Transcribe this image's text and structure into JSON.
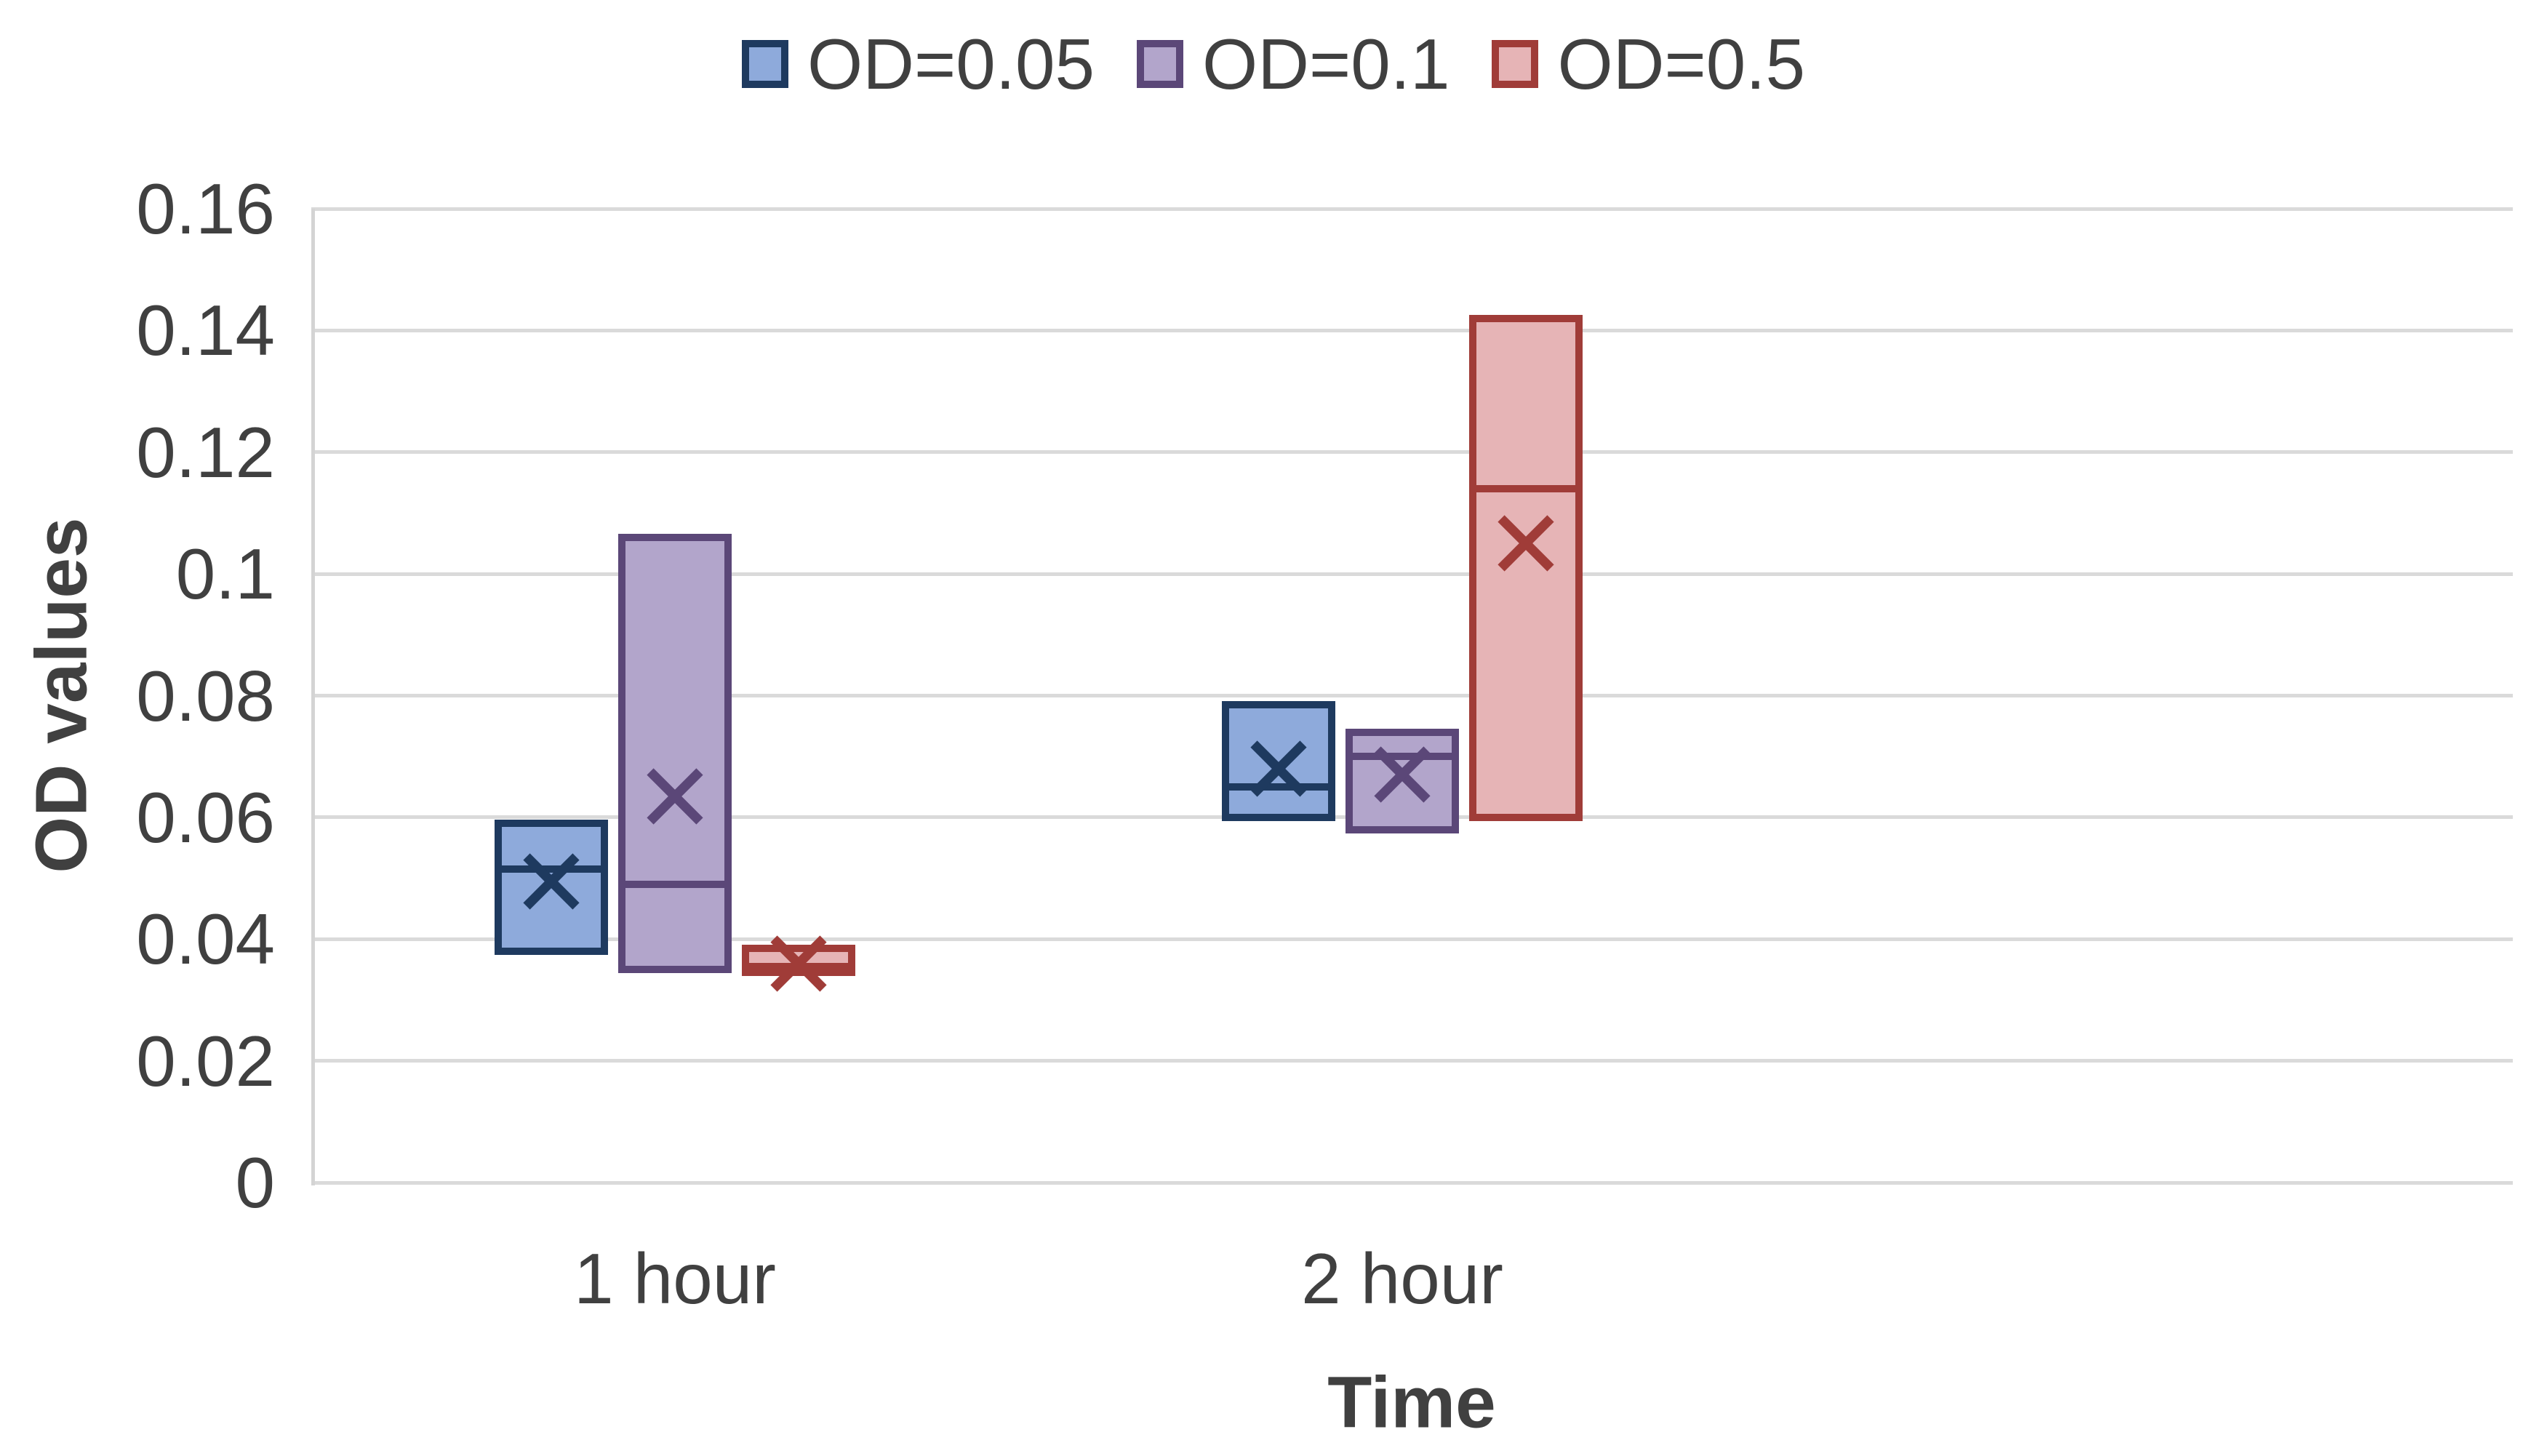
{
  "legend": {
    "items": [
      {
        "label": "OD=0.05",
        "fill": "#8EAADB",
        "border": "#1E3A5F"
      },
      {
        "label": "OD=0.1",
        "fill": "#B2A5CB",
        "border": "#5B4778"
      },
      {
        "label": "OD=0.5",
        "fill": "#E6B4B6",
        "border": "#A03C38"
      }
    ]
  },
  "y_axis": {
    "title": "OD values",
    "tick_labels": [
      "0",
      "0.02",
      "0.04",
      "0.06",
      "0.08",
      "0.1",
      "0.12",
      "0.14",
      "0.16"
    ],
    "tick_values": [
      0,
      0.02,
      0.04,
      0.06,
      0.08,
      0.1,
      0.12,
      0.14,
      0.16
    ]
  },
  "x_axis": {
    "title": "Time",
    "categories": [
      "1 hour",
      "2 hour"
    ]
  },
  "colors": {
    "text": "#404040",
    "gridline": "#DADADA",
    "axis_line": "#D4D4D4",
    "background": "#FFFFFF"
  },
  "chart_data": {
    "type": "box",
    "title": "",
    "xlabel": "Time",
    "ylabel": "OD values",
    "ylim": [
      0,
      0.16
    ],
    "ytick_step": 0.02,
    "grid": true,
    "legend_position": "top",
    "categories": [
      "1 hour",
      "2 hour"
    ],
    "series": [
      {
        "name": "OD=0.05",
        "fill": "#8EAADB",
        "border": "#1E3A5F",
        "boxes": [
          {
            "category": "1 hour",
            "min": 0.038,
            "max": 0.059,
            "median": 0.0515,
            "mean": 0.0495
          },
          {
            "category": "2 hour",
            "min": 0.06,
            "max": 0.0785,
            "median": 0.065,
            "mean": 0.068
          }
        ]
      },
      {
        "name": "OD=0.1",
        "fill": "#B2A5CB",
        "border": "#5B4778",
        "boxes": [
          {
            "category": "1 hour",
            "min": 0.035,
            "max": 0.106,
            "median": 0.049,
            "mean": 0.0635
          },
          {
            "category": "2 hour",
            "min": 0.058,
            "max": 0.074,
            "median": 0.07,
            "mean": 0.067
          }
        ]
      },
      {
        "name": "OD=0.5",
        "fill": "#E6B4B6",
        "border": "#A03C38",
        "boxes": [
          {
            "category": "1 hour",
            "min": 0.0345,
            "max": 0.0385,
            "median": 0.0355,
            "mean": 0.036
          },
          {
            "category": "2 hour",
            "min": 0.06,
            "max": 0.142,
            "median": 0.114,
            "mean": 0.105
          }
        ]
      }
    ]
  }
}
